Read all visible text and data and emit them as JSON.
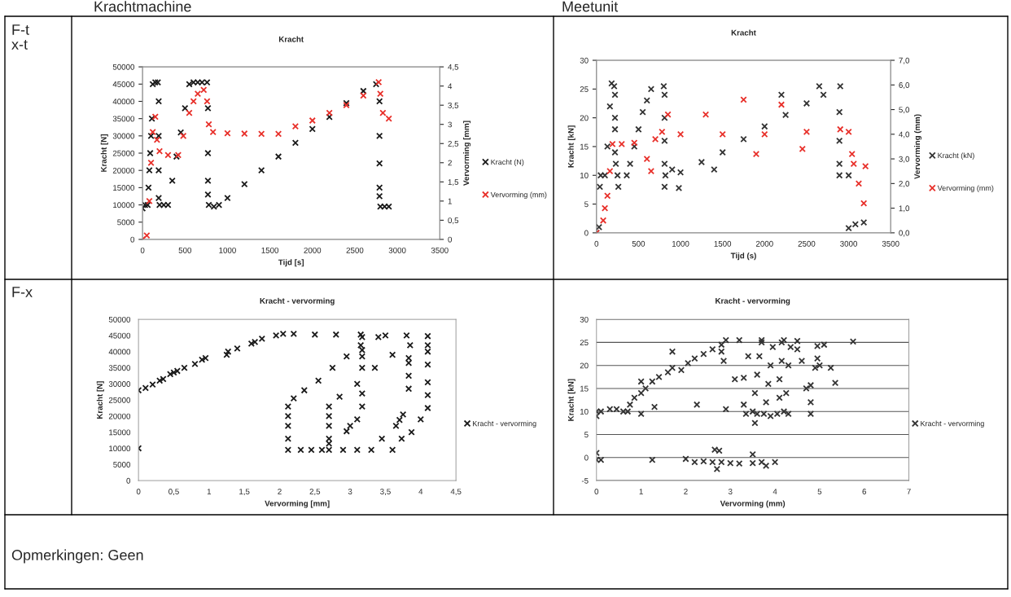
{
  "chart_data": [
    {
      "type": "scatter",
      "title": "Kracht",
      "xlabel": "Tijd [s]",
      "ylabel": "Kracht [N]",
      "y2label": "Vervorming [mm]",
      "marker": "cross",
      "legend": "right",
      "grid": false,
      "annotations": [
        "Krachtmachine",
        "F-t",
        "x-t"
      ],
      "xlim": [
        0,
        3500
      ],
      "xticks": [
        0,
        500,
        1000,
        1500,
        2000,
        2500,
        3000,
        3500
      ],
      "ylim": [
        0,
        50000
      ],
      "yticks": [
        0,
        5000,
        10000,
        15000,
        20000,
        25000,
        30000,
        35000,
        40000,
        45000,
        50000
      ],
      "y2lim": [
        0,
        4.5
      ],
      "y2ticks": [
        0,
        {
          "value": 0.5,
          "label": "0,5"
        },
        1,
        {
          "value": 1.5,
          "label": "1,5"
        },
        2,
        {
          "value": 2.5,
          "label": "2,5"
        },
        3,
        {
          "value": 3.5,
          "label": "3,5"
        },
        4,
        {
          "value": 4.5,
          "label": "4,5"
        }
      ],
      "series": [
        {
          "name": "Kracht (N)",
          "color": "#1a1a1a",
          "x": [
            0,
            30,
            60,
            70,
            80,
            90,
            100,
            110,
            120,
            150,
            180,
            190,
            190,
            190,
            190,
            200,
            250,
            300,
            350,
            400,
            450,
            500,
            550,
            600,
            650,
            700,
            760,
            770,
            770,
            770,
            770,
            780,
            840,
            900,
            1000,
            1200,
            1400,
            1600,
            1800,
            2000,
            2200,
            2400,
            2600,
            2750,
            2790,
            2790,
            2790,
            2790,
            2790,
            2800,
            2850,
            2900
          ],
          "values": [
            9000,
            10000,
            10000,
            15000,
            20000,
            25000,
            30000,
            35000,
            45000,
            45500,
            45500,
            40000,
            30000,
            20000,
            12000,
            10000,
            10000,
            10000,
            17000,
            24000,
            31000,
            38000,
            45000,
            45500,
            45500,
            45500,
            45500,
            38000,
            25000,
            17000,
            13000,
            10000,
            9500,
            10000,
            12000,
            16000,
            20000,
            24000,
            28000,
            32000,
            35500,
            39500,
            43000,
            45000,
            40000,
            30000,
            22000,
            15000,
            12500,
            9500,
            9500,
            9500
          ]
        },
        {
          "name": "Vervorming (mm)",
          "color": "#e8302a",
          "axis": "y2",
          "x": [
            0,
            50,
            80,
            100,
            120,
            150,
            170,
            200,
            300,
            420,
            480,
            550,
            600,
            650,
            720,
            760,
            780,
            830,
            1000,
            1200,
            1400,
            1600,
            1800,
            2000,
            2200,
            2400,
            2600,
            2780,
            2800,
            2830,
            2900
          ],
          "values": [
            0,
            0.1,
            1,
            2,
            2.8,
            3.2,
            2.6,
            2.3,
            2.2,
            2.2,
            2.7,
            3.3,
            3.6,
            3.8,
            3.9,
            3.6,
            3.0,
            2.8,
            2.77,
            2.76,
            2.75,
            2.75,
            2.95,
            3.1,
            3.3,
            3.5,
            3.75,
            4.1,
            3.8,
            3.3,
            3.15
          ]
        }
      ]
    },
    {
      "type": "scatter",
      "title": "Kracht",
      "xlabel": "Tijd (s)",
      "ylabel": "Kracht [kN]",
      "y2label": "Vervorming (mm)",
      "marker": "cross",
      "legend": "right",
      "grid": false,
      "annotations": [
        "Meetunit"
      ],
      "xlim": [
        0,
        3500
      ],
      "xticks": [
        0,
        500,
        1000,
        1500,
        2000,
        2500,
        3000,
        3500
      ],
      "ylim": [
        0,
        30
      ],
      "yticks": [
        0,
        5,
        10,
        15,
        20,
        25,
        30
      ],
      "y2lim": [
        0,
        7
      ],
      "y2ticks": [
        {
          "value": 0,
          "label": "0,0"
        },
        {
          "value": 1,
          "label": "1,0"
        },
        {
          "value": 2,
          "label": "2,0"
        },
        {
          "value": 3,
          "label": "3,0"
        },
        {
          "value": 4,
          "label": "4,0"
        },
        {
          "value": 5,
          "label": "5,0"
        },
        {
          "value": 6,
          "label": "6,0"
        },
        {
          "value": 7,
          "label": "7,0"
        }
      ],
      "series": [
        {
          "name": "Kracht (kN)",
          "color": "#333333",
          "x": [
            0,
            30,
            40,
            50,
            100,
            130,
            160,
            180,
            210,
            220,
            220,
            220,
            220,
            230,
            260,
            250,
            360,
            400,
            450,
            500,
            550,
            600,
            650,
            800,
            810,
            810,
            810,
            810,
            810,
            820,
            900,
            980,
            1000,
            1250,
            1400,
            1500,
            1750,
            2000,
            2200,
            2250,
            2500,
            2650,
            2700,
            2900,
            2890,
            2890,
            2890,
            2890,
            3000,
            3000,
            3080,
            3180
          ],
          "values": [
            0,
            1,
            8,
            10,
            10,
            15,
            22,
            26,
            25.5,
            24,
            20,
            18,
            14,
            12,
            8,
            10,
            10,
            12,
            15,
            18,
            21,
            23,
            25,
            25.5,
            24,
            20,
            16,
            12,
            8,
            10,
            11,
            7.8,
            10.5,
            12.3,
            11,
            14,
            16.3,
            18.5,
            24,
            20.5,
            22.5,
            25.5,
            24,
            25.5,
            21,
            16,
            12,
            10,
            10,
            0.8,
            1.5,
            1.8
          ]
        },
        {
          "name": "Vervorming (mm)",
          "color": "#e8302a",
          "axis": "y2",
          "x": [
            0,
            80,
            100,
            130,
            160,
            190,
            300,
            450,
            600,
            650,
            700,
            780,
            850,
            1000,
            1300,
            1500,
            1750,
            1900,
            2000,
            2200,
            2450,
            2500,
            2900,
            3000,
            3040,
            3060,
            3120,
            3180,
            3200
          ],
          "values": [
            0,
            0.5,
            1,
            1.5,
            2.5,
            3.6,
            3.6,
            3.65,
            3.0,
            2.5,
            3.8,
            4.1,
            4.8,
            4.0,
            4.8,
            4.0,
            5.4,
            3.2,
            4.0,
            5.2,
            3.4,
            4.1,
            4.2,
            4.1,
            3.2,
            2.8,
            2.0,
            1.2,
            2.7
          ]
        }
      ]
    },
    {
      "type": "scatter",
      "title": "Kracht - vervorming",
      "xlabel": "Vervorming [mm]",
      "ylabel": "Kracht [N]",
      "marker": "cross",
      "legend": "right",
      "grid": false,
      "annotations": [
        "F-x"
      ],
      "xlim": [
        0,
        4.5
      ],
      "xticks": [
        0,
        {
          "value": 0.5,
          "label": "0,5"
        },
        1,
        {
          "value": 1.5,
          "label": "1,5"
        },
        2,
        {
          "value": 2.5,
          "label": "2,5"
        },
        3,
        {
          "value": 3.5,
          "label": "3,5"
        },
        4,
        {
          "value": 4.5,
          "label": "4,5"
        }
      ],
      "ylim": [
        0,
        50000
      ],
      "yticks": [
        0,
        5000,
        10000,
        15000,
        20000,
        25000,
        30000,
        35000,
        40000,
        45000,
        50000
      ],
      "series": [
        {
          "name": "Kracht - vervorming",
          "color": "#1a1a1a",
          "x": [
            0,
            0,
            0.1,
            0.2,
            0.3,
            0.35,
            0.45,
            0.5,
            0.55,
            0.65,
            0.8,
            0.9,
            0.95,
            1.25,
            1.27,
            1.4,
            1.6,
            1.65,
            1.75,
            1.95,
            2.05,
            2.2,
            2.5,
            2.8,
            3.15,
            2.12,
            2.3,
            2.45,
            2.6,
            2.12,
            2.12,
            2.12,
            2.12,
            2.2,
            2.35,
            2.55,
            2.75,
            2.95,
            3.15,
            3.4,
            3.5,
            3.8,
            2.7,
            2.9,
            3.1,
            3.3,
            3.6,
            2.7,
            2.7,
            2.7,
            2.7,
            2.85,
            3.1,
            3.35,
            3.6,
            3.85,
            4.1,
            3.17,
            3.17,
            3.17,
            3.17,
            3.17,
            3.17,
            2.95,
            3.0,
            3.1,
            3.45,
            3.83,
            3.83,
            3.83,
            3.83,
            3.75,
            3.7,
            3.65,
            3.73,
            3.87,
            4.0,
            4.1,
            4.1,
            4.1,
            4.1,
            4.1,
            4.1,
            2.7
          ],
          "values": [
            10000,
            28000,
            28700,
            29800,
            31000,
            31500,
            33000,
            33500,
            34000,
            35000,
            36200,
            37500,
            38000,
            39000,
            40000,
            41000,
            42500,
            43000,
            44000,
            45000,
            45500,
            45500,
            45300,
            45300,
            45300,
            9500,
            9500,
            9500,
            9500,
            13000,
            17000,
            20000,
            23000,
            25500,
            28000,
            31000,
            35000,
            38500,
            42000,
            44500,
            45000,
            45000,
            9500,
            9500,
            9500,
            9500,
            9500,
            13000,
            17000,
            20000,
            23000,
            26000,
            30000,
            35000,
            39000,
            42000,
            44800,
            44500,
            40500,
            38500,
            35000,
            27000,
            23000,
            15300,
            17000,
            19000,
            13000,
            38000,
            36500,
            32500,
            28500,
            20500,
            18800,
            17000,
            13000,
            15000,
            19000,
            42000,
            40000,
            36000,
            30500,
            26500,
            22500,
            11500
          ]
        }
      ]
    },
    {
      "type": "scatter",
      "title": "Kracht - vervorming",
      "xlabel": "Vervorming (mm)",
      "ylabel": "Kracht [kN]",
      "marker": "cross",
      "legend": "right",
      "grid": "y",
      "annotations": [
        "Opmerkingen: Geen"
      ],
      "xlim": [
        0,
        7
      ],
      "xticks": [
        0,
        1,
        2,
        3,
        4,
        5,
        6,
        7
      ],
      "ylim": [
        -5,
        30
      ],
      "yticks": [
        -5,
        0,
        5,
        10,
        15,
        20,
        25,
        30
      ],
      "series": [
        {
          "name": "Kracht - vervorming",
          "color": "#333333",
          "x": [
            0,
            0.1,
            0,
            0,
            0,
            0.1,
            0.3,
            0.45,
            0.6,
            0.7,
            0.75,
            0.85,
            1,
            1.1,
            1.25,
            1.4,
            1.6,
            1.7,
            1.9,
            2.05,
            2.2,
            2.4,
            2.6,
            2.8,
            2.9,
            3.2,
            3.7,
            4.2,
            4.5,
            3.5,
            3.55,
            3.6,
            3.65,
            3.7,
            3.6,
            3.75,
            3.8,
            3.85,
            3.9,
            3.95,
            3.9,
            4.05,
            4.1,
            4.1,
            4.15,
            4.15,
            4.2,
            4.3,
            4.25,
            4.3,
            4.35,
            2.6,
            2.8,
            3.0,
            3.2,
            3.5,
            3.7,
            2.65,
            2.75,
            3.5,
            2.7,
            3.8,
            4.0,
            2.0,
            2.2,
            2.4,
            1.25,
            1.7,
            1.0,
            1.3,
            1.0,
            2.25,
            2.9,
            2.85,
            2.8,
            3.1,
            3.3,
            3.3,
            3.4,
            3.35,
            3.55,
            4.8,
            4.7,
            4.8,
            4.8,
            4.9,
            4.95,
            5.0,
            4.95,
            5.1,
            5.25,
            5.35,
            5.75,
            4.6,
            4.5
          ],
          "values": [
            -0.5,
            -0.5,
            1,
            9,
            10,
            10,
            10.5,
            10.5,
            10,
            10,
            11.5,
            13,
            14,
            15,
            16.5,
            17.5,
            18.5,
            19.5,
            19,
            20.5,
            21.5,
            22.5,
            23.5,
            24.5,
            25.5,
            25.5,
            25.5,
            25.5,
            25.3,
            10,
            14,
            18,
            22,
            25,
            9.5,
            9.5,
            12,
            16,
            20,
            24,
            9,
            9.5,
            13,
            17,
            21,
            25,
            10,
            9.5,
            14,
            20,
            24,
            -1,
            -1,
            -1.2,
            -1.3,
            -1.2,
            -1,
            1.7,
            1.5,
            0.7,
            -2.5,
            -1.8,
            -1,
            -0.3,
            -1,
            -0.8,
            -0.5,
            23,
            16.5,
            11,
            9.5,
            11.5,
            10.5,
            21,
            23,
            17,
            11.5,
            17.3,
            22,
            9.5,
            7.5,
            15.7,
            15,
            12,
            9.5,
            19.5,
            21.5,
            20,
            24.2,
            24.5,
            19.5,
            16.2,
            25.2,
            21,
            23.5
          ]
        }
      ]
    }
  ]
}
